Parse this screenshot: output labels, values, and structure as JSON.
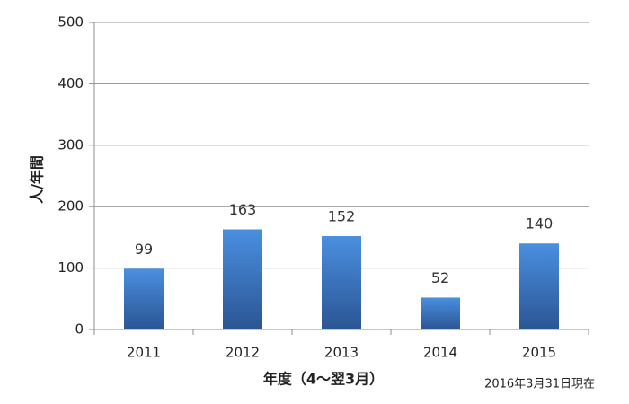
{
  "chart_data": {
    "type": "bar",
    "categories": [
      "2011",
      "2012",
      "2013",
      "2014",
      "2015"
    ],
    "values": [
      99,
      163,
      152,
      52,
      140
    ],
    "color": "#4a8fe0",
    "ylim": [
      0,
      500
    ],
    "yticks": [
      0,
      100,
      200,
      300,
      400,
      500
    ],
    "grid": true,
    "y_label": "人/年間",
    "x_label": "年度（4～翌3月）",
    "annotation": "2016年3月31日現在"
  }
}
